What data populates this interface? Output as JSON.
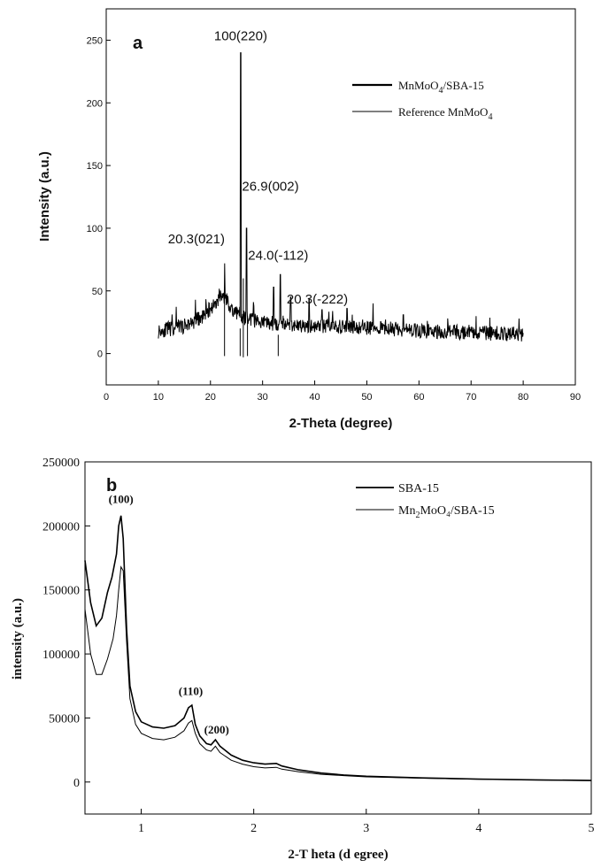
{
  "chart_data": [
    {
      "panel_label": "a",
      "type": "line",
      "xlabel": "2-Theta (degree)",
      "ylabel": "Intensity (a.u.)",
      "xlim": [
        0,
        90
      ],
      "ylim": [
        -25,
        275
      ],
      "x_ticks": [
        0,
        10,
        20,
        30,
        40,
        50,
        60,
        70,
        80,
        90
      ],
      "y_ticks": [
        0,
        50,
        100,
        150,
        200,
        250
      ],
      "grid": false,
      "legend_position": "top-right",
      "series": [
        {
          "name": "MnMoO",
          "name_sub": "4",
          "name_suffix": "/SBA-15",
          "style": "noisy-line",
          "x_range": [
            10,
            80
          ],
          "baseline_points": [
            [
              10,
              18
            ],
            [
              15,
              22
            ],
            [
              18,
              28
            ],
            [
              20,
              36
            ],
            [
              22,
              45
            ],
            [
              23,
              44
            ],
            [
              24,
              36
            ],
            [
              26,
              29
            ],
            [
              30,
              25
            ],
            [
              35,
              23
            ],
            [
              40,
              22
            ],
            [
              50,
              21
            ],
            [
              60,
              18
            ],
            [
              70,
              17
            ],
            [
              80,
              15
            ]
          ],
          "noise_amplitude": 6,
          "peaks": [
            {
              "x": 22.7,
              "y": 72
            },
            {
              "x": 25.8,
              "y": 240
            },
            {
              "x": 26.9,
              "y": 100
            },
            {
              "x": 28.3,
              "y": 38
            },
            {
              "x": 32.1,
              "y": 53
            },
            {
              "x": 33.4,
              "y": 63
            },
            {
              "x": 35.4,
              "y": 45
            },
            {
              "x": 38.9,
              "y": 44
            },
            {
              "x": 41.4,
              "y": 35
            },
            {
              "x": 46.2,
              "y": 36
            },
            {
              "x": 51.2,
              "y": 40
            },
            {
              "x": 57.0,
              "y": 31
            },
            {
              "x": 65.5,
              "y": 28
            }
          ]
        },
        {
          "name": "Reference MnMoO",
          "name_sub": "4",
          "name_suffix": "",
          "style": "sticks",
          "sticks": [
            {
              "x": 22.7,
              "from": -2,
              "to": 50
            },
            {
              "x": 25.7,
              "from": -2,
              "to": 20
            },
            {
              "x": 26.3,
              "from": -3,
              "to": 60
            },
            {
              "x": 27.1,
              "from": -2,
              "to": 30
            },
            {
              "x": 33.0,
              "from": -2,
              "to": 15
            }
          ]
        }
      ],
      "annotations": [
        {
          "text": "100(220)",
          "x": 25.8,
          "y": 250
        },
        {
          "text": "26.9(002)",
          "x": 31.5,
          "y": 130
        },
        {
          "text": "20.3(021)",
          "x": 17.3,
          "y": 88
        },
        {
          "text": "24.0(-112)",
          "x": 33.0,
          "y": 75
        },
        {
          "text": "20.3(-222)",
          "x": 40.5,
          "y": 40
        }
      ]
    },
    {
      "panel_label": "b",
      "type": "line",
      "xlabel": "2-T heta (d egree)",
      "ylabel": "intensity (a.u.)",
      "xlim": [
        0.5,
        5
      ],
      "ylim": [
        -25000,
        250000
      ],
      "x_ticks": [
        1,
        2,
        3,
        4,
        5
      ],
      "y_ticks": [
        0,
        50000,
        100000,
        150000,
        200000,
        250000
      ],
      "grid": false,
      "legend_position": "top-right",
      "series": [
        {
          "name": "SBA-15",
          "name_sub": "",
          "name_suffix": "",
          "points": [
            [
              0.5,
              173000
            ],
            [
              0.55,
              140000
            ],
            [
              0.6,
              122000
            ],
            [
              0.65,
              128000
            ],
            [
              0.7,
              148000
            ],
            [
              0.74,
              160000
            ],
            [
              0.78,
              178000
            ],
            [
              0.8,
              200000
            ],
            [
              0.82,
              208000
            ],
            [
              0.84,
              190000
            ],
            [
              0.87,
              120000
            ],
            [
              0.9,
              75000
            ],
            [
              0.95,
              55000
            ],
            [
              1.0,
              47000
            ],
            [
              1.1,
              43000
            ],
            [
              1.2,
              42000
            ],
            [
              1.3,
              44000
            ],
            [
              1.38,
              50000
            ],
            [
              1.42,
              58000
            ],
            [
              1.45,
              60000
            ],
            [
              1.48,
              45000
            ],
            [
              1.52,
              36000
            ],
            [
              1.58,
              30000
            ],
            [
              1.62,
              29000
            ],
            [
              1.66,
              33000
            ],
            [
              1.7,
              28000
            ],
            [
              1.8,
              21000
            ],
            [
              1.9,
              17000
            ],
            [
              2.0,
              15000
            ],
            [
              2.1,
              14000
            ],
            [
              2.2,
              14500
            ],
            [
              2.25,
              12500
            ],
            [
              2.4,
              9500
            ],
            [
              2.6,
              7000
            ],
            [
              2.8,
              5500
            ],
            [
              3.0,
              4500
            ],
            [
              3.5,
              3200
            ],
            [
              4.0,
              2300
            ],
            [
              4.5,
              1700
            ],
            [
              5.0,
              1200
            ]
          ]
        },
        {
          "name": "Mn",
          "name_sub": "2",
          "name_suffix": "MoO₄/SBA-15",
          "points": [
            [
              0.5,
              135000
            ],
            [
              0.55,
              100000
            ],
            [
              0.6,
              84000
            ],
            [
              0.65,
              84000
            ],
            [
              0.7,
              96000
            ],
            [
              0.75,
              112000
            ],
            [
              0.78,
              130000
            ],
            [
              0.8,
              150000
            ],
            [
              0.82,
              168000
            ],
            [
              0.84,
              165000
            ],
            [
              0.87,
              110000
            ],
            [
              0.9,
              65000
            ],
            [
              0.95,
              45000
            ],
            [
              1.0,
              38000
            ],
            [
              1.1,
              34000
            ],
            [
              1.2,
              33000
            ],
            [
              1.3,
              35000
            ],
            [
              1.38,
              40000
            ],
            [
              1.42,
              46000
            ],
            [
              1.45,
              48000
            ],
            [
              1.48,
              38000
            ],
            [
              1.52,
              30000
            ],
            [
              1.58,
              25000
            ],
            [
              1.62,
              24000
            ],
            [
              1.66,
              28000
            ],
            [
              1.7,
              23000
            ],
            [
              1.8,
              17000
            ],
            [
              1.9,
              14000
            ],
            [
              2.0,
              12000
            ],
            [
              2.1,
              11000
            ],
            [
              2.2,
              11500
            ],
            [
              2.25,
              10000
            ],
            [
              2.4,
              8000
            ],
            [
              2.6,
              6000
            ],
            [
              2.8,
              5000
            ],
            [
              3.0,
              4000
            ],
            [
              3.5,
              3000
            ],
            [
              4.0,
              2100
            ],
            [
              4.5,
              1600
            ],
            [
              5.0,
              1100
            ]
          ]
        }
      ],
      "annotations": [
        {
          "text": "(100)",
          "x": 0.82,
          "y": 218000
        },
        {
          "text": "(110)",
          "x": 1.44,
          "y": 68000
        },
        {
          "text": "(200)",
          "x": 1.67,
          "y": 38000
        }
      ]
    }
  ]
}
